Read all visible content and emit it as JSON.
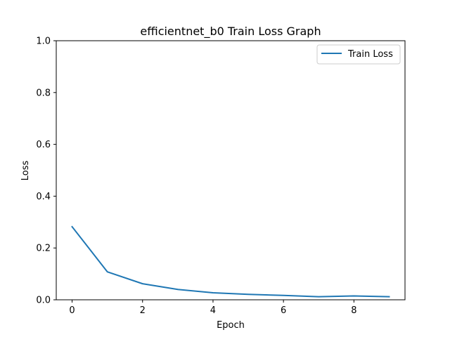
{
  "chart_data": {
    "type": "line",
    "title": "efficientnet_b0 Train Loss Graph",
    "xlabel": "Epoch",
    "ylabel": "Loss",
    "xlim": [
      -0.45,
      9.45
    ],
    "ylim": [
      0.0,
      1.0
    ],
    "xticks": [
      0,
      2,
      4,
      6,
      8
    ],
    "yticks": [
      0.0,
      0.2,
      0.4,
      0.6,
      0.8,
      1.0
    ],
    "xtick_labels": [
      "0",
      "2",
      "4",
      "6",
      "8"
    ],
    "ytick_labels": [
      "0.0",
      "0.2",
      "0.4",
      "0.6",
      "0.8",
      "1.0"
    ],
    "grid": false,
    "legend_position": "top-right",
    "series": [
      {
        "name": "Train Loss",
        "color": "#1f77b4",
        "x": [
          0,
          1,
          2,
          3,
          4,
          5,
          6,
          7,
          8,
          9
        ],
        "y": [
          0.282,
          0.108,
          0.062,
          0.04,
          0.027,
          0.021,
          0.017,
          0.012,
          0.015,
          0.012
        ]
      }
    ]
  }
}
